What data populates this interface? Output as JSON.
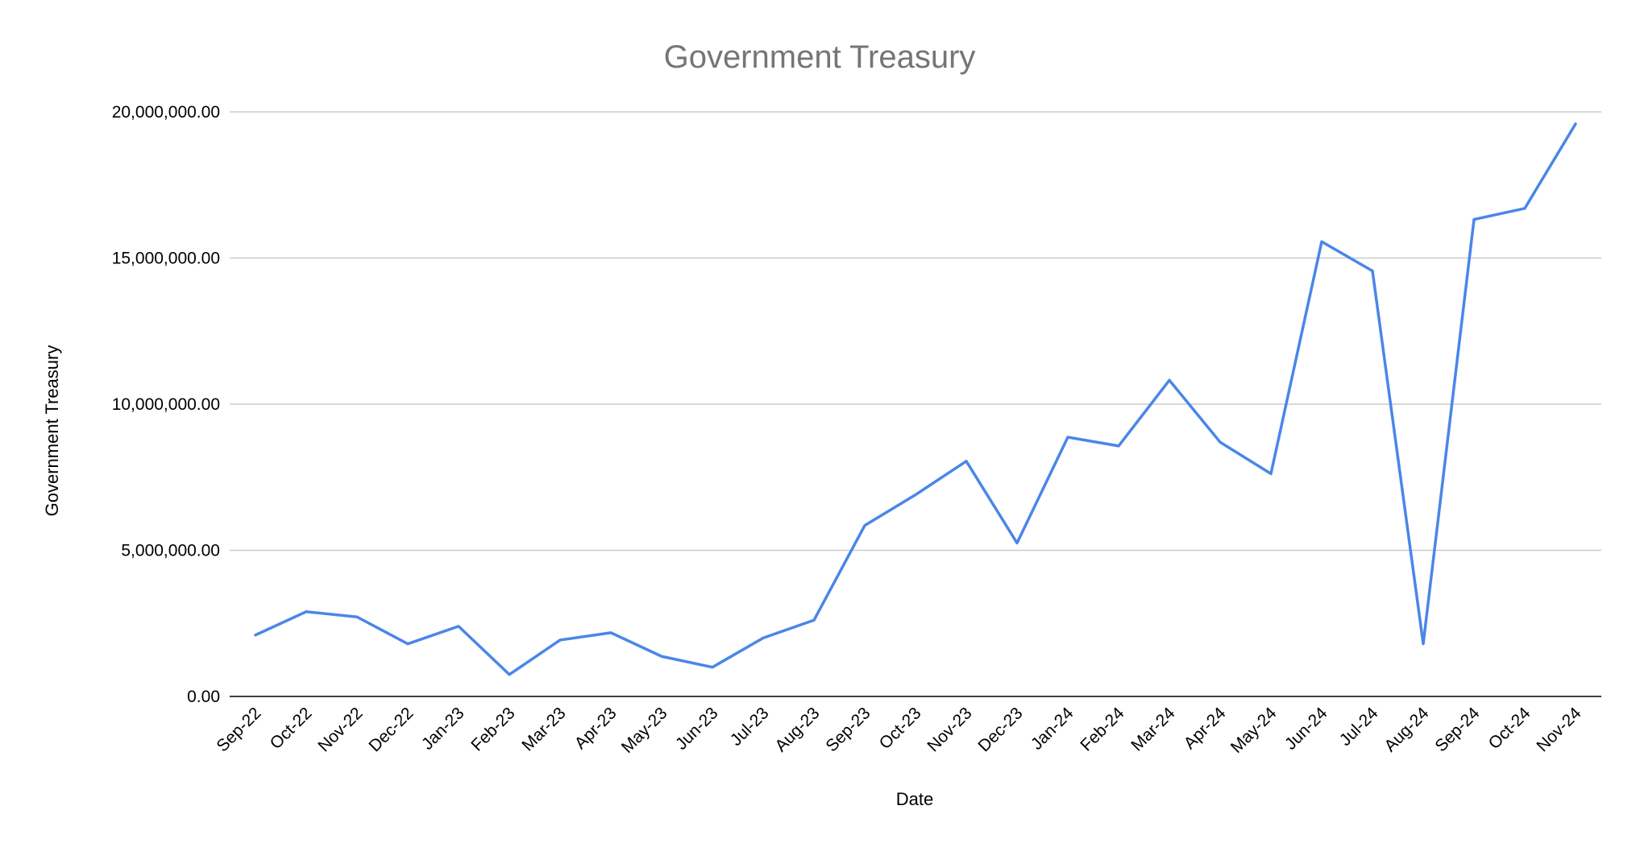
{
  "chart_data": {
    "type": "line",
    "title": "Government Treasury",
    "xlabel": "Date",
    "ylabel": "Government Treasury",
    "ylim": [
      0,
      20000000
    ],
    "yticks": [
      "0.00",
      "5,000,000.00",
      "10,000,000.00",
      "15,000,000.00",
      "20,000,000.00"
    ],
    "ytick_values": [
      0,
      5000000,
      10000000,
      15000000,
      20000000
    ],
    "grid": true,
    "legend": "none",
    "line_color": "#4a86e8",
    "gridline_color": "#cccccc",
    "axis_color": "#000000",
    "categories": [
      "Sep-22",
      "Oct-22",
      "Nov-22",
      "Dec-22",
      "Jan-23",
      "Feb-23",
      "Mar-23",
      "Apr-23",
      "May-23",
      "Jun-23",
      "Jul-23",
      "Aug-23",
      "Sep-23",
      "Oct-23",
      "Nov-23",
      "Dec-23",
      "Jan-24",
      "Feb-24",
      "Mar-24",
      "Apr-24",
      "May-24",
      "Jun-24",
      "Jul-24",
      "Aug-24",
      "Sep-24",
      "Oct-24",
      "Nov-24"
    ],
    "series": [
      {
        "values": [
          2100000,
          2900000,
          2720000,
          1800000,
          2400000,
          750000,
          1930000,
          2180000,
          1370000,
          1000000,
          2000000,
          2610000,
          5850000,
          6900000,
          8050000,
          5250000,
          8870000,
          8570000,
          10820000,
          8700000,
          7620000,
          15560000,
          14560000,
          1800000,
          16320000,
          16700000,
          19590000
        ]
      }
    ]
  }
}
